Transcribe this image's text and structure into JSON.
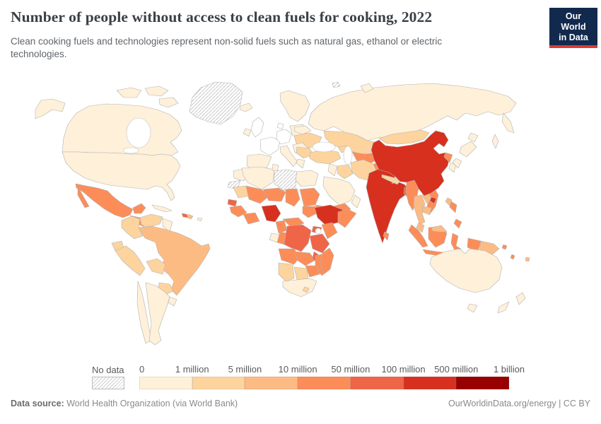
{
  "header": {
    "title": "Number of people without access to clean fuels for cooking, 2022",
    "subtitle": "Clean cooking fuels and technologies represent non-solid fuels such as natural gas, ethanol or electric technologies.",
    "logo": {
      "line1": "Our World",
      "line2": "in Data",
      "bg_color": "#12294e",
      "accent_color": "#dc3a31",
      "text_color": "#ffffff"
    }
  },
  "legend": {
    "no_data_label": "No data",
    "tick_labels": [
      "0",
      "1 million",
      "5 million",
      "10 million",
      "50 million",
      "100 million",
      "500 million",
      "1 billion"
    ],
    "bar_bins": [
      "b0",
      "b1",
      "b2",
      "b3",
      "b4",
      "b5",
      "b6"
    ]
  },
  "map": {
    "bin_colors": {
      "zero": "#ffffff",
      "b0": "#fef0d9",
      "b1": "#fdd49e",
      "b2": "#fdbb84",
      "b3": "#fc8d59",
      "b4": "#ef6548",
      "b5": "#d7301f",
      "b6": "#990000",
      "no_data": "hatch"
    },
    "border_color": "#b3b3b3",
    "hatch_line_color": "#c9c9c9",
    "regions": {
      "alaska": "b0",
      "canada": "b0",
      "arctic_islands": "b0",
      "greenland": "no_data",
      "usa": "b0",
      "mexico": "b3",
      "yucatan": "b3",
      "central_america": "b3",
      "costa_rica_panama": "b2",
      "cuba": "b0",
      "haiti": "b4",
      "dominican_republic": "b2",
      "puerto_rico": "b0",
      "colombia": "b1",
      "venezuela": "b1",
      "guianas": "b0",
      "ecuador": "b1",
      "peru": "b1",
      "brazil": "b2",
      "bolivia": "b1",
      "paraguay": "b1",
      "chile": "b0",
      "argentina": "b0",
      "uruguay": "b0",
      "iceland": "b0",
      "scandinavia": "b0",
      "denmark": "zero",
      "uk": "zero",
      "ireland": "b0",
      "france": "zero",
      "iberia": "b0",
      "germany": "zero",
      "italy": "b0",
      "poland_baltics": "b0",
      "balkans": "b0",
      "greece": "b0",
      "ukraine": "b1",
      "belarus": "b0",
      "romania_bulgaria": "b1",
      "russia": "b0",
      "kamchatka": "b0",
      "sakhalin": "b0",
      "novaya_zemlya": "b0",
      "svalbard": "no_data",
      "kazakhstan": "b1",
      "uzbekistan_turkmenistan": "b3",
      "kyrgyzstan_tajikistan": "b2",
      "caucasus": "b1",
      "turkey": "b1",
      "levant": "b0",
      "iraq": "b1",
      "saudi_arabia": "b0",
      "yemen": "b3",
      "oman": "b0",
      "iran": "b1",
      "afghanistan": "b3",
      "pakistan": "b5",
      "india": "b5",
      "nepal": "b1",
      "bangladesh": "b4",
      "sri_lanka": "b3",
      "myanmar": "b3",
      "thailand": "b2",
      "laos": "b2",
      "vietnam": "b3",
      "cambodia": "b2",
      "malaysia_peninsula": "b2",
      "china": "b5",
      "hainan": "b5",
      "mongolia": "b1",
      "north_korea": "b3",
      "south_korea": "b0",
      "japan_hokkaido": "b0",
      "japan_honshu": "b0",
      "japan_kyushu": "b0",
      "taiwan": "b2",
      "philippines_luzon": "b3",
      "philippines_mindanao": "b3",
      "sumatra": "b3",
      "java": "b3",
      "borneo": "b3",
      "malaysia_borneo": "b2",
      "sulawesi": "b3",
      "west_papua": "b3",
      "papua_new_guinea": "b2",
      "solomon_islands": "b3",
      "vanuatu": "b3",
      "fiji": "b2",
      "morocco": "b0",
      "western_sahara": "no_data",
      "algeria": "b0",
      "tunisia": "b0",
      "libya": "no_data",
      "egypt": "b0",
      "mauritania": "b1",
      "mali": "b3",
      "niger": "b3",
      "chad": "b3",
      "sudan": "b3",
      "south_sudan": "b3",
      "eritrea": "b3",
      "senegal": "b4",
      "guinea_region": "b3",
      "ghana_region": "b3",
      "nigeria": "b5",
      "cameroon": "b3",
      "central_african_republic": "b3",
      "ethiopia": "b5",
      "somalia": "b3",
      "uganda": "b4",
      "kenya": "b3",
      "gabon": "b0",
      "congo": "b3",
      "dr_congo": "b4",
      "tanzania": "b4",
      "angola": "b3",
      "zambia": "b3",
      "malawi": "b4",
      "mozambique": "b3",
      "zimbabwe": "b3",
      "namibia": "b1",
      "botswana": "b1",
      "south_africa": "b0",
      "lesotho": "b1",
      "madagascar": "b3",
      "australia": "b0",
      "tasmania": "b0",
      "new_zealand_north": "b0",
      "new_zealand_south": "b0"
    }
  },
  "footer": {
    "source_label": "Data source:",
    "source_value": "World Health Organization (via World Bank)",
    "link": "OurWorldinData.org/energy | CC BY"
  }
}
